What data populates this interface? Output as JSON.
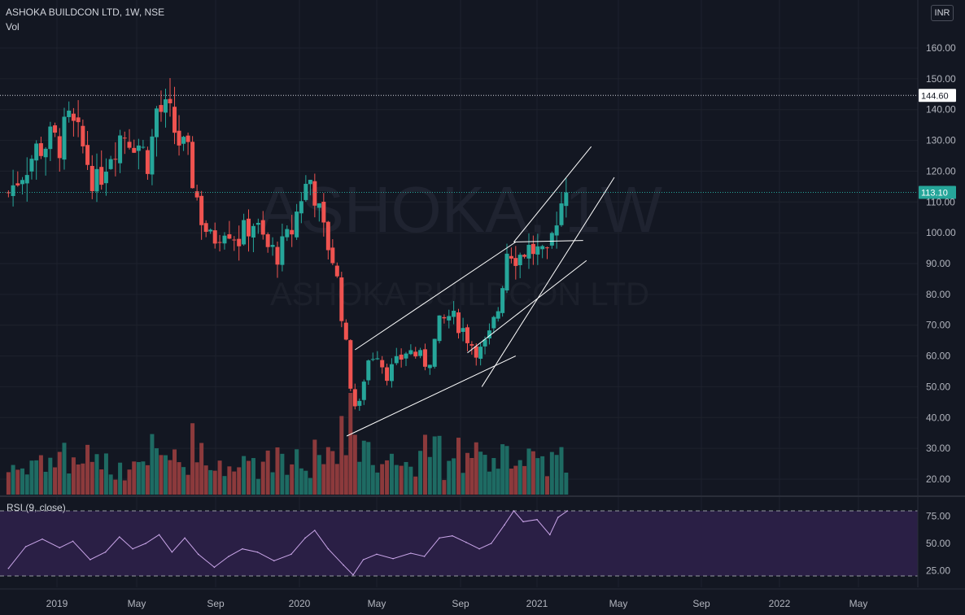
{
  "header": {
    "title": "ASHOKA BUILDCON LTD, 1W, NSE",
    "volume_label": "Vol"
  },
  "currency": "INR",
  "watermark": {
    "ticker": "ASHOKA, 1W",
    "name": "ASHOKA BUILDCON LTD"
  },
  "colors": {
    "background": "#131722",
    "up": "#26a69a",
    "down": "#ef5350",
    "volume_up": "#1e6b63",
    "volume_down": "#8c3a3c",
    "rsi_line": "#c9a5e8",
    "rsi_band": "#2a1f45",
    "grid": "#1e222d",
    "axis_text": "#b2b5be"
  },
  "chart_data": [
    {
      "type": "candlestick",
      "title": "ASHOKA BUILDCON LTD, 1W, NSE",
      "currency": "INR",
      "y_axis": {
        "ticks": [
          "20.00",
          "30.00",
          "40.00",
          "50.00",
          "60.00",
          "70.00",
          "80.00",
          "90.00",
          "100.00",
          "110.00",
          "120.00",
          "130.00",
          "140.00",
          "150.00",
          "160.00"
        ],
        "ylim": [
          15,
          175
        ]
      },
      "x_axis": {
        "ticks": [
          "2019",
          "May",
          "Sep",
          "2020",
          "May",
          "Sep",
          "2021",
          "May",
          "Sep",
          "2022",
          "May"
        ]
      },
      "horizontal_lines": [
        {
          "value": 144.6,
          "label": "144.60",
          "style": "dotted"
        },
        {
          "value": 113.1,
          "label": "113.10",
          "style": "dotted",
          "current_price": true
        }
      ],
      "last_price": 113.1,
      "drawings": [
        {
          "type": "trendline",
          "from": [
            "2020-03-15",
            34
          ],
          "to": [
            "2020-11-28",
            60
          ]
        },
        {
          "type": "trendline",
          "from": [
            "2020-03-28",
            62
          ],
          "to": [
            "2020-11-28",
            97
          ]
        },
        {
          "type": "trendline",
          "from": [
            "2020-09-12",
            61
          ],
          "to": [
            "2021-03-15",
            91
          ]
        },
        {
          "type": "trendline",
          "from": [
            "2020-11-25",
            97
          ],
          "to": [
            "2021-03-22",
            128
          ]
        },
        {
          "type": "trendline",
          "from": [
            "2020-10-05",
            50
          ],
          "to": [
            "2021-04-25",
            118
          ]
        },
        {
          "type": "trendline",
          "from": [
            "2020-11-25",
            97
          ],
          "to": [
            "2021-03-10",
            97.5
          ]
        }
      ],
      "close_series": [
        {
          "x": "2018-10-20",
          "y": 113
        },
        {
          "x": "2018-11-10",
          "y": 120
        },
        {
          "x": "2018-12-01",
          "y": 127
        },
        {
          "x": "2018-12-22",
          "y": 130
        },
        {
          "x": "2019-01-05",
          "y": 129
        },
        {
          "x": "2019-01-20",
          "y": 136
        },
        {
          "x": "2019-02-10",
          "y": 127
        },
        {
          "x": "2019-03-01",
          "y": 115
        },
        {
          "x": "2019-03-20",
          "y": 126
        },
        {
          "x": "2019-04-10",
          "y": 133
        },
        {
          "x": "2019-05-01",
          "y": 130
        },
        {
          "x": "2019-05-20",
          "y": 123
        },
        {
          "x": "2019-06-01",
          "y": 140
        },
        {
          "x": "2019-06-20",
          "y": 138
        },
        {
          "x": "2019-07-05",
          "y": 130
        },
        {
          "x": "2019-07-20",
          "y": 124
        },
        {
          "x": "2019-08-10",
          "y": 105
        },
        {
          "x": "2019-08-25",
          "y": 97
        },
        {
          "x": "2019-09-15",
          "y": 103
        },
        {
          "x": "2019-10-05",
          "y": 98
        },
        {
          "x": "2019-10-25",
          "y": 104
        },
        {
          "x": "2019-11-15",
          "y": 95
        },
        {
          "x": "2019-12-01",
          "y": 93
        },
        {
          "x": "2019-12-20",
          "y": 100
        },
        {
          "x": "2020-01-05",
          "y": 113
        },
        {
          "x": "2020-01-20",
          "y": 118
        },
        {
          "x": "2020-02-05",
          "y": 102
        },
        {
          "x": "2020-02-25",
          "y": 90
        },
        {
          "x": "2020-03-10",
          "y": 70
        },
        {
          "x": "2020-03-20",
          "y": 52
        },
        {
          "x": "2020-04-01",
          "y": 40
        },
        {
          "x": "2020-04-15",
          "y": 58
        },
        {
          "x": "2020-05-01",
          "y": 62
        },
        {
          "x": "2020-05-15",
          "y": 54
        },
        {
          "x": "2020-06-01",
          "y": 58
        },
        {
          "x": "2020-06-15",
          "y": 62
        },
        {
          "x": "2020-07-01",
          "y": 60
        },
        {
          "x": "2020-07-15",
          "y": 57
        },
        {
          "x": "2020-08-01",
          "y": 70
        },
        {
          "x": "2020-08-15",
          "y": 73
        },
        {
          "x": "2020-09-01",
          "y": 70
        },
        {
          "x": "2020-09-15",
          "y": 65
        },
        {
          "x": "2020-10-01",
          "y": 61
        },
        {
          "x": "2020-10-15",
          "y": 65
        },
        {
          "x": "2020-11-01",
          "y": 76
        },
        {
          "x": "2020-11-15",
          "y": 96
        },
        {
          "x": "2020-12-01",
          "y": 92
        },
        {
          "x": "2020-12-15",
          "y": 95
        },
        {
          "x": "2021-01-01",
          "y": 94
        },
        {
          "x": "2021-01-15",
          "y": 90
        },
        {
          "x": "2021-02-01",
          "y": 108
        },
        {
          "x": "2021-02-15",
          "y": 113.1
        }
      ]
    },
    {
      "type": "bar",
      "title": "Vol",
      "note": "volume histogram, colored by candle direction"
    },
    {
      "type": "line",
      "title": "RSI (9, close)",
      "y_axis": {
        "ticks": [
          "25.00",
          "50.00",
          "75.00"
        ],
        "ylim": [
          18,
          82
        ]
      },
      "bands": {
        "upper": 80,
        "lower": 20
      },
      "series": [
        {
          "x": "2018-10-20",
          "y": 27
        },
        {
          "x": "2018-11-15",
          "y": 47
        },
        {
          "x": "2018-12-10",
          "y": 54
        },
        {
          "x": "2019-01-05",
          "y": 46
        },
        {
          "x": "2019-01-25",
          "y": 52
        },
        {
          "x": "2019-02-20",
          "y": 35
        },
        {
          "x": "2019-03-15",
          "y": 42
        },
        {
          "x": "2019-04-05",
          "y": 56
        },
        {
          "x": "2019-04-25",
          "y": 45
        },
        {
          "x": "2019-05-15",
          "y": 50
        },
        {
          "x": "2019-06-05",
          "y": 58
        },
        {
          "x": "2019-06-25",
          "y": 42
        },
        {
          "x": "2019-07-15",
          "y": 55
        },
        {
          "x": "2019-08-05",
          "y": 40
        },
        {
          "x": "2019-08-30",
          "y": 28
        },
        {
          "x": "2019-09-20",
          "y": 38
        },
        {
          "x": "2019-10-10",
          "y": 45
        },
        {
          "x": "2019-11-01",
          "y": 42
        },
        {
          "x": "2019-11-25",
          "y": 34
        },
        {
          "x": "2019-12-20",
          "y": 40
        },
        {
          "x": "2020-01-10",
          "y": 55
        },
        {
          "x": "2020-01-25",
          "y": 62
        },
        {
          "x": "2020-02-15",
          "y": 45
        },
        {
          "x": "2020-03-10",
          "y": 30
        },
        {
          "x": "2020-03-25",
          "y": 21
        },
        {
          "x": "2020-04-10",
          "y": 35
        },
        {
          "x": "2020-05-01",
          "y": 40
        },
        {
          "x": "2020-05-25",
          "y": 36
        },
        {
          "x": "2020-06-20",
          "y": 41
        },
        {
          "x": "2020-07-10",
          "y": 38
        },
        {
          "x": "2020-08-01",
          "y": 55
        },
        {
          "x": "2020-08-20",
          "y": 57
        },
        {
          "x": "2020-09-10",
          "y": 51
        },
        {
          "x": "2020-10-01",
          "y": 45
        },
        {
          "x": "2020-10-20",
          "y": 50
        },
        {
          "x": "2020-11-10",
          "y": 67
        },
        {
          "x": "2020-11-25",
          "y": 80
        },
        {
          "x": "2020-12-10",
          "y": 70
        },
        {
          "x": "2021-01-01",
          "y": 72
        },
        {
          "x": "2021-01-20",
          "y": 58
        },
        {
          "x": "2021-02-01",
          "y": 74
        },
        {
          "x": "2021-02-15",
          "y": 80
        }
      ]
    }
  ]
}
